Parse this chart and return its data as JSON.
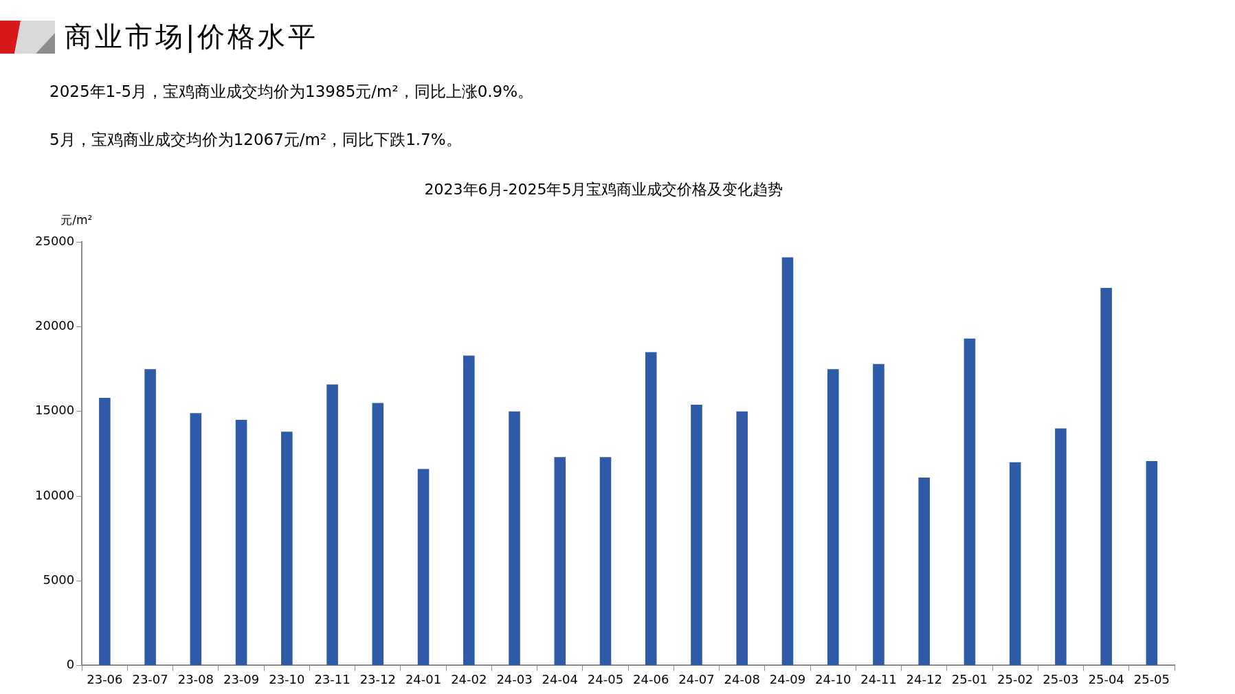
{
  "chart_data": {
    "type": "bar",
    "title": "2023年6月-2025年5月宝鸡商业成交价格及变化趋势",
    "ylabel": "元/m²",
    "annotations": [
      "商业市场|价格水平",
      "2025年1-5月，宝鸡商业成交均价为13985元/m²，同比上涨0.9%。",
      "5月，宝鸡商业成交均价为12067元/m²，同比下跌1.7%。"
    ],
    "categories": [
      "23-06",
      "23-07",
      "23-08",
      "23-09",
      "23-10",
      "23-11",
      "23-12",
      "24-01",
      "24-02",
      "24-03",
      "24-04",
      "24-05",
      "24-06",
      "24-07",
      "24-08",
      "24-09",
      "24-10",
      "24-11",
      "24-12",
      "25-01",
      "25-02",
      "25-03",
      "25-04",
      "25-05"
    ],
    "values": [
      15800,
      17500,
      14900,
      14500,
      13800,
      16600,
      15500,
      11600,
      18300,
      15000,
      12300,
      12300,
      18500,
      15400,
      15000,
      24100,
      17500,
      17800,
      11100,
      19300,
      12000,
      14000,
      22300,
      12067
    ],
    "color": "#2e5aa7",
    "ylim": [
      0,
      25000
    ],
    "yticks": [
      0,
      5000,
      10000,
      15000,
      20000,
      25000
    ],
    "grid": false,
    "legend": false
  }
}
